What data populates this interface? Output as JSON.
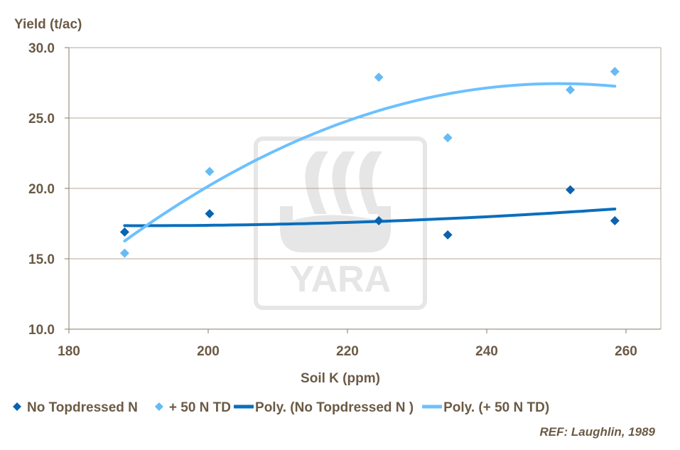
{
  "chart_data": {
    "type": "scatter",
    "title": "",
    "xlabel": "Soil K (ppm)",
    "ylabel": "Yield (t/ac)",
    "xlim": [
      180,
      265
    ],
    "ylim": [
      10,
      30
    ],
    "xticks": [
      "180",
      "200",
      "220",
      "240",
      "260"
    ],
    "yticks": [
      "10.0",
      "15.0",
      "20.0",
      "25.0",
      "30.0"
    ],
    "grid": "horizontal",
    "legend_position": "bottom",
    "series": [
      {
        "name": "No Topdressed N",
        "color": "#0a63b0",
        "marker": "diamond",
        "x": [
          188,
          200.2,
          224.5,
          234.4,
          252,
          258.4
        ],
        "y": [
          16.9,
          18.2,
          17.7,
          16.7,
          19.9,
          17.7
        ]
      },
      {
        "name": "+ 50 N TD",
        "color": "#66bbf5",
        "marker": "diamond",
        "x": [
          188,
          200.2,
          224.5,
          234.4,
          252,
          258.4
        ],
        "y": [
          15.4,
          21.2,
          27.9,
          23.6,
          27.0,
          28.3
        ]
      }
    ],
    "trendlines": [
      {
        "name": "Poly. (No Topdressed N )",
        "color": "#0a6ebd",
        "type": "polynomial",
        "of_series": 0
      },
      {
        "name": "Poly. (+ 50 N TD)",
        "color": "#6cc0ff",
        "type": "polynomial",
        "of_series": 1
      }
    ],
    "annotation": "REF: Laughlin, 1989",
    "watermark": "YARA"
  }
}
